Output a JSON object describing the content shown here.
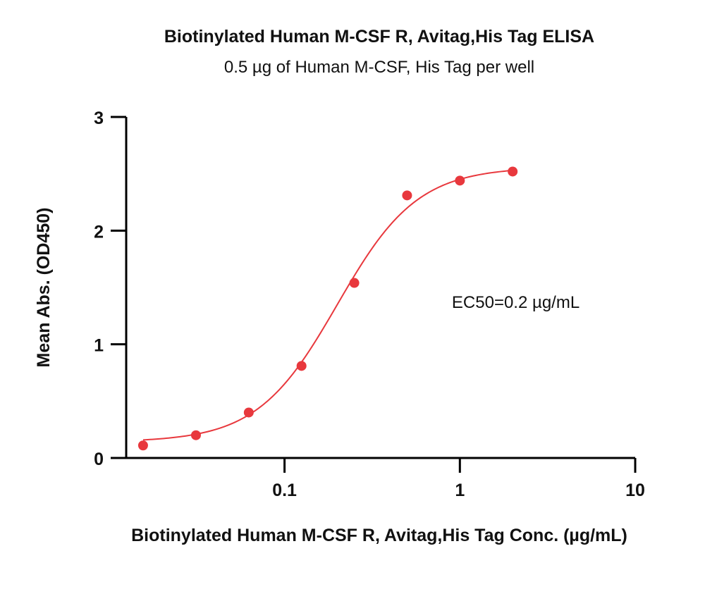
{
  "chart_data": {
    "type": "scatter",
    "title": "Biotinylated Human M-CSF R, Avitag,His Tag ELISA",
    "subtitle": "0.5 µg of Human M-CSF, His Tag per well",
    "xlabel": "Biotinylated Human M-CSF R, Avitag,His Tag Conc. (µg/mL)",
    "ylabel": "Mean Abs. (OD450)",
    "x_scale": "log",
    "xlim": [
      0.0125,
      10
    ],
    "ylim": [
      0,
      3
    ],
    "x_ticks": [
      {
        "value": 0.1,
        "label": "0.1"
      },
      {
        "value": 1,
        "label": "1"
      },
      {
        "value": 10,
        "label": "10"
      }
    ],
    "y_ticks": [
      {
        "value": 0,
        "label": "0"
      },
      {
        "value": 1,
        "label": "1"
      },
      {
        "value": 2,
        "label": "2"
      },
      {
        "value": 3,
        "label": "3"
      }
    ],
    "series": [
      {
        "x": [
          0.0156,
          0.03125,
          0.0625,
          0.125,
          0.25,
          0.5,
          1,
          2
        ],
        "y": [
          0.11,
          0.2,
          0.4,
          0.81,
          1.54,
          2.31,
          2.44,
          2.52
        ],
        "color": "#e8383d",
        "fit": {
          "model": "4PL",
          "bottom": 0.14,
          "top": 2.56,
          "ec50": 0.2,
          "hill": 1.9
        }
      }
    ],
    "annotations": [
      {
        "text": "EC50=0.2 µg/mL",
        "x": 0.9,
        "y": 1.32
      }
    ],
    "grid": false,
    "legend": "none"
  }
}
